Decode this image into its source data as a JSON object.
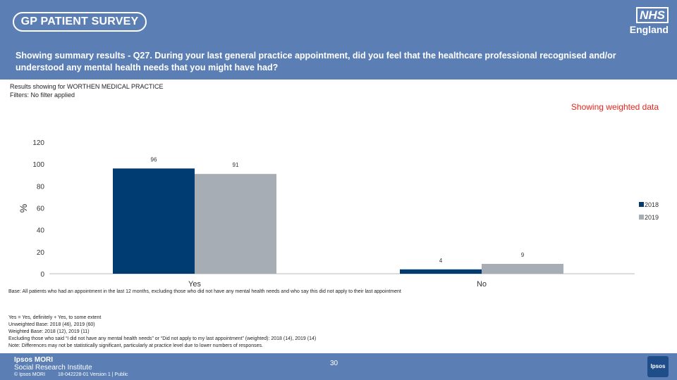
{
  "header": {
    "survey_title": "GP PATIENT SURVEY",
    "nhs_logo": "NHS",
    "nhs_region": "England"
  },
  "question_title": "Showing summary results - Q27.  During your last general practice appointment, did you feel that the healthcare professional recognised and/or understood any mental health needs that you might have had?",
  "meta": {
    "results_for": "Results showing for WORTHEN MEDICAL PRACTICE",
    "filters": "Filters: No filter applied"
  },
  "weighted_label": "Showing weighted data",
  "colors": {
    "series_2018": "#003b71",
    "series_2019": "#a6adb4",
    "brand": "#5b7fb4",
    "red": "#e8251d"
  },
  "chart_data": {
    "type": "bar",
    "categories": [
      "Yes",
      "No"
    ],
    "series": [
      {
        "name": "2018",
        "values": [
          96,
          4
        ]
      },
      {
        "name": "2019",
        "values": [
          91,
          9
        ]
      }
    ],
    "ylabel": "%",
    "ylim": [
      0,
      120
    ],
    "yticks": [
      0,
      20,
      40,
      60,
      80,
      100,
      120
    ],
    "legend_position": "right"
  },
  "footnotes": {
    "base": "Base: All patients who had an appointment in the last 12 months, excluding those who did not have any mental health needs and who say this did not apply to their last appointment",
    "definition": "Yes = Yes, definitely + Yes, to some extent",
    "unweighted": "Unweighted Base: 2018 (46), 2019 (60)",
    "weighted": "Weighted Base: 2018 (12), 2019 (11)",
    "excluding": "Excluding those who said “I did not have any mental health needs” or “Did not apply to my last appointment” (weighted): 2018 (14), 2019 (14)",
    "note": "Note: Differences may not be statistically significant, particularly at practice level due to lower numbers of responses."
  },
  "footer": {
    "ipsos_line1": "Ipsos MORI",
    "ipsos_line2": "Social Research Institute",
    "copyright": "© Ipsos MORI",
    "reference": "18-042228-01 Version 1 | Public",
    "page_number": "30",
    "badge": "Ipsos"
  }
}
